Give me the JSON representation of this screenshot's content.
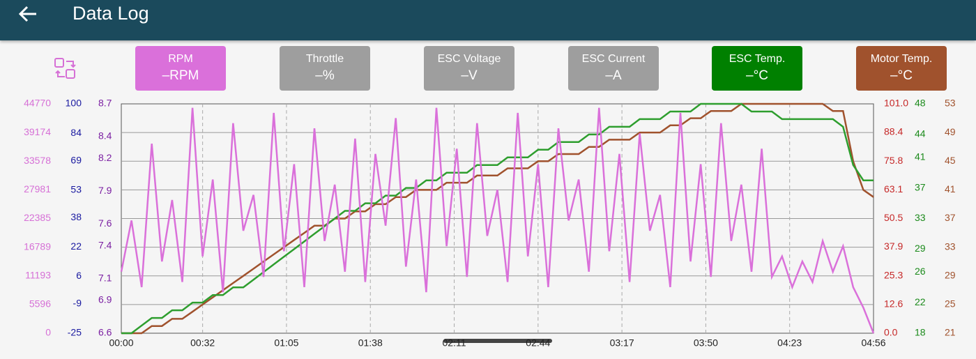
{
  "header": {
    "title": "Data Log"
  },
  "sensors": [
    {
      "label": "RPM",
      "value": "–RPM",
      "color": "#da70da"
    },
    {
      "label": "Throttle",
      "value": "–%",
      "color": "#9e9e9e"
    },
    {
      "label": "ESC Voltage",
      "value": "–V",
      "color": "#9e9e9e"
    },
    {
      "label": "ESC Current",
      "value": "–A",
      "color": "#9e9e9e"
    },
    {
      "label": "ESC Temp.",
      "value": "–°C",
      "color": "#008000"
    },
    {
      "label": "Motor Temp.",
      "value": "–°C",
      "color": "#a0522d"
    }
  ],
  "chart_data": {
    "type": "line",
    "grid": true,
    "xlim": [
      0,
      296
    ],
    "xticks": [
      {
        "value": 0,
        "label": "00:00"
      },
      {
        "value": 32,
        "label": "00:32"
      },
      {
        "value": 65,
        "label": "01:05"
      },
      {
        "value": 98,
        "label": "01:38"
      },
      {
        "value": 131,
        "label": "02:11"
      },
      {
        "value": 164,
        "label": "02:44"
      },
      {
        "value": 197,
        "label": "03:17"
      },
      {
        "value": 230,
        "label": "03:50"
      },
      {
        "value": 263,
        "label": "04:23"
      },
      {
        "value": 296,
        "label": "04:56"
      }
    ],
    "axes": [
      {
        "side": "left",
        "color": "#d670d6",
        "ylim": [
          0,
          44770
        ],
        "yticks": [
          0,
          5596,
          11193,
          16789,
          22385,
          27981,
          33578,
          39174,
          44770
        ]
      },
      {
        "side": "left",
        "color": "#1a1aa0",
        "ylim": [
          -25,
          100
        ],
        "yticks": [
          -25,
          -9,
          6,
          22,
          38,
          53,
          69,
          84,
          100
        ]
      },
      {
        "side": "left",
        "color": "#7b1fa2",
        "ylim": [
          6.6,
          8.7
        ],
        "yticks": [
          6.6,
          6.9,
          7.1,
          7.4,
          7.6,
          7.9,
          8.2,
          8.4,
          8.7
        ]
      },
      {
        "side": "right",
        "color": "#c62828",
        "ylim": [
          0,
          101
        ],
        "yticks": [
          {
            "value": 0,
            "label": "0.0"
          },
          12.6,
          25.3,
          37.9,
          50.5,
          63.1,
          75.8,
          88.4,
          {
            "value": 101,
            "label": "101.0"
          }
        ]
      },
      {
        "side": "right",
        "color": "#1b8a1b",
        "ylim": [
          18,
          48
        ],
        "yticks": [
          18,
          22,
          26,
          29,
          33,
          37,
          41,
          44,
          48
        ]
      },
      {
        "side": "right",
        "color": "#a0522d",
        "ylim": [
          21,
          53
        ],
        "yticks": [
          21,
          25,
          29,
          33,
          37,
          41,
          45,
          49,
          53
        ]
      }
    ],
    "x": [
      0,
      4,
      8,
      12,
      16,
      20,
      24,
      28,
      32,
      36,
      40,
      44,
      48,
      52,
      56,
      60,
      64,
      68,
      72,
      76,
      80,
      84,
      88,
      92,
      96,
      100,
      104,
      108,
      112,
      116,
      120,
      124,
      128,
      132,
      136,
      140,
      144,
      148,
      152,
      156,
      160,
      164,
      168,
      172,
      176,
      180,
      184,
      188,
      192,
      196,
      200,
      204,
      208,
      212,
      216,
      220,
      224,
      228,
      232,
      236,
      240,
      244,
      248,
      252,
      256,
      260,
      264,
      268,
      272,
      276,
      280,
      284,
      288,
      292,
      296
    ],
    "series": [
      {
        "name": "RPM",
        "axis": 0,
        "color": "#da70da",
        "values": [
          12000,
          22000,
          9000,
          37000,
          14000,
          26000,
          10000,
          44000,
          15000,
          30000,
          8000,
          41000,
          20000,
          27000,
          11000,
          43000,
          16000,
          33000,
          9000,
          40000,
          18000,
          29000,
          12000,
          38000,
          10000,
          35000,
          21000,
          42000,
          13000,
          30000,
          8000,
          44000,
          17000,
          36000,
          11000,
          41000,
          19000,
          28000,
          10000,
          43000,
          15000,
          33000,
          9000,
          40000,
          22000,
          30000,
          12000,
          44000,
          16000,
          35000,
          10000,
          39000,
          20000,
          27000,
          9000,
          43000,
          14000,
          33000,
          11000,
          41000,
          18000,
          29000,
          12000,
          36000,
          11000,
          15000,
          9000,
          14000,
          10000,
          18000,
          12000,
          17000,
          9000,
          5000,
          0
        ]
      },
      {
        "name": "ESC Temp.",
        "axis": 4,
        "color": "#2e9e2e",
        "values": [
          18,
          18,
          19,
          20,
          20,
          21,
          21,
          22,
          22,
          23,
          23,
          24,
          24,
          25,
          26,
          27,
          28,
          29,
          30,
          31,
          32,
          33,
          34,
          34,
          35,
          35,
          36,
          36,
          37,
          37,
          38,
          38,
          39,
          39,
          39,
          40,
          40,
          40,
          41,
          41,
          41,
          42,
          42,
          43,
          43,
          43,
          44,
          44,
          45,
          45,
          45,
          46,
          46,
          46,
          47,
          47,
          47,
          48,
          48,
          48,
          48,
          48,
          47,
          47,
          47,
          46,
          46,
          46,
          46,
          46,
          46,
          45,
          40,
          38,
          38
        ]
      },
      {
        "name": "Motor Temp.",
        "axis": 5,
        "color": "#a0522d",
        "values": [
          21,
          21,
          21,
          22,
          22,
          23,
          23,
          24,
          25,
          26,
          27,
          28,
          29,
          30,
          31,
          32,
          33,
          34,
          35,
          36,
          36,
          37,
          37,
          38,
          38,
          39,
          39,
          40,
          40,
          41,
          41,
          41,
          42,
          42,
          42,
          43,
          43,
          43,
          44,
          44,
          44,
          45,
          45,
          46,
          46,
          46,
          47,
          47,
          48,
          48,
          48,
          49,
          49,
          49,
          50,
          50,
          51,
          51,
          52,
          52,
          52,
          53,
          53,
          53,
          53,
          53,
          53,
          53,
          53,
          53,
          52,
          52,
          45,
          41,
          40
        ]
      }
    ]
  }
}
